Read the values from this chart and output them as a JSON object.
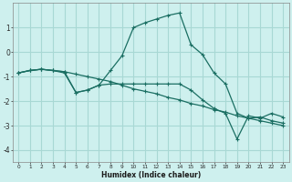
{
  "xlabel": "Humidex (Indice chaleur)",
  "bg_color": "#cef0ee",
  "grid_color": "#a8d8d4",
  "line_color": "#1a6e62",
  "xlim": [
    -0.5,
    23.5
  ],
  "ylim": [
    -4.5,
    2.0
  ],
  "xticks": [
    0,
    1,
    2,
    3,
    4,
    5,
    6,
    7,
    8,
    9,
    10,
    11,
    12,
    13,
    14,
    15,
    16,
    17,
    18,
    19,
    20,
    21,
    22,
    23
  ],
  "yticks": [
    -4,
    -3,
    -2,
    -1,
    0,
    1
  ],
  "series1_x": [
    0,
    1,
    2,
    3,
    4,
    5,
    6,
    7,
    8,
    9,
    10,
    11,
    12,
    13,
    14,
    15,
    16,
    17,
    18,
    19,
    20,
    21,
    22,
    23
  ],
  "series1_y": [
    -0.85,
    -0.75,
    -0.7,
    -0.75,
    -0.8,
    -0.9,
    -1.0,
    -1.1,
    -1.2,
    -1.35,
    -1.5,
    -1.6,
    -1.7,
    -1.85,
    -1.95,
    -2.1,
    -2.2,
    -2.35,
    -2.45,
    -2.6,
    -2.7,
    -2.8,
    -2.9,
    -3.0
  ],
  "series2_x": [
    0,
    1,
    2,
    3,
    4,
    5,
    6,
    7,
    8,
    9,
    10,
    11,
    12,
    13,
    14,
    15,
    16,
    17,
    18,
    19,
    20,
    21,
    22,
    23
  ],
  "series2_y": [
    -0.85,
    -0.75,
    -0.7,
    -0.75,
    -0.8,
    -1.65,
    -1.55,
    -1.35,
    -0.75,
    -0.15,
    1.0,
    1.2,
    1.35,
    1.5,
    1.6,
    0.3,
    -0.1,
    -0.85,
    -1.3,
    -2.5,
    -2.7,
    -2.65,
    -2.8,
    -2.9
  ],
  "series3_x": [
    0,
    1,
    2,
    3,
    4,
    5,
    6,
    7,
    8,
    9,
    10,
    11,
    12,
    13,
    14,
    15,
    16,
    17,
    18,
    19,
    20,
    21,
    22,
    23
  ],
  "series3_y": [
    -0.85,
    -0.75,
    -0.7,
    -0.75,
    -0.85,
    -1.65,
    -1.55,
    -1.35,
    -1.3,
    -1.3,
    -1.3,
    -1.3,
    -1.3,
    -1.3,
    -1.3,
    -1.55,
    -1.95,
    -2.3,
    -2.5,
    -3.55,
    -2.6,
    -2.7,
    -2.5,
    -2.65
  ]
}
